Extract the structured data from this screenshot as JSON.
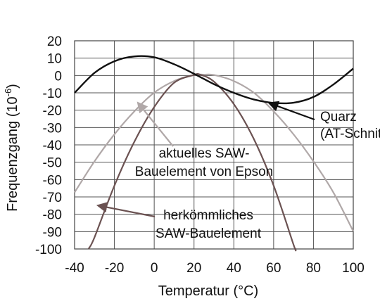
{
  "chart_data": {
    "type": "line",
    "xlabel": "Temperatur (°C)",
    "ylabel": {
      "prefix": "Frequenzgang (10",
      "exponent": "-6",
      "suffix": ")"
    },
    "x_ticks": [
      -40,
      -20,
      0,
      20,
      40,
      60,
      80,
      100
    ],
    "y_ticks": [
      20,
      10,
      0,
      -10,
      -20,
      -30,
      -40,
      -50,
      -60,
      -70,
      -80,
      -90,
      -100
    ],
    "xlim": [
      -40,
      100
    ],
    "ylim": [
      -100,
      20
    ],
    "grid": true,
    "series": [
      {
        "id": "quarz",
        "color": "#111111",
        "points": [
          [
            -40,
            -10
          ],
          [
            -30,
            1.5
          ],
          [
            -20,
            8.2
          ],
          [
            -10,
            11
          ],
          [
            0,
            10.5
          ],
          [
            10,
            6.5
          ],
          [
            20,
            1
          ],
          [
            30,
            -5
          ],
          [
            40,
            -10
          ],
          [
            50,
            -13.8
          ],
          [
            60,
            -15.8
          ],
          [
            70,
            -15.7
          ],
          [
            80,
            -12.4
          ],
          [
            90,
            -5.2
          ],
          [
            100,
            4
          ]
        ]
      },
      {
        "id": "saw-epson",
        "color": "#b0a8a8",
        "points": [
          [
            -40,
            -67.4
          ],
          [
            -30,
            -49.5
          ],
          [
            -20,
            -33.9
          ],
          [
            -10,
            -20.7
          ],
          [
            0,
            -9.9
          ],
          [
            10,
            -3.2
          ],
          [
            20,
            0.3
          ],
          [
            25,
            0.5
          ],
          [
            30,
            0.3
          ],
          [
            40,
            -3.2
          ],
          [
            50,
            -9.9
          ],
          [
            60,
            -20.7
          ],
          [
            70,
            -33.9
          ],
          [
            80,
            -49.5
          ],
          [
            90,
            -67.4
          ],
          [
            100,
            -89.8
          ]
        ]
      },
      {
        "id": "saw-herkoemmlich",
        "color": "#6b5252",
        "points": [
          [
            -33,
            -100
          ],
          [
            -30,
            -93.3
          ],
          [
            -20,
            -63.5
          ],
          [
            -10,
            -38.2
          ],
          [
            0,
            -18.2
          ],
          [
            10,
            -4.2
          ],
          [
            20,
            0.3
          ],
          [
            23,
            0.5
          ],
          [
            30,
            -3.5
          ],
          [
            40,
            -16.5
          ],
          [
            50,
            -36.5
          ],
          [
            60,
            -63.5
          ],
          [
            70,
            -97.5
          ],
          [
            71,
            -100
          ]
        ]
      }
    ],
    "annotations": [
      {
        "id": "quarz",
        "lines": [
          "Quarz",
          "(AT-Schnitt)"
        ],
        "points_to": [
          58,
          -16
        ]
      },
      {
        "id": "saw-epson",
        "lines": [
          "aktuelles SAW-",
          "Bauelement von Epson"
        ],
        "points_to": [
          -8,
          -16
        ]
      },
      {
        "id": "saw-herkoemmlich",
        "lines": [
          "herkömmliches",
          "SAW-Bauelement"
        ],
        "points_to": [
          -28,
          -75
        ]
      }
    ]
  }
}
